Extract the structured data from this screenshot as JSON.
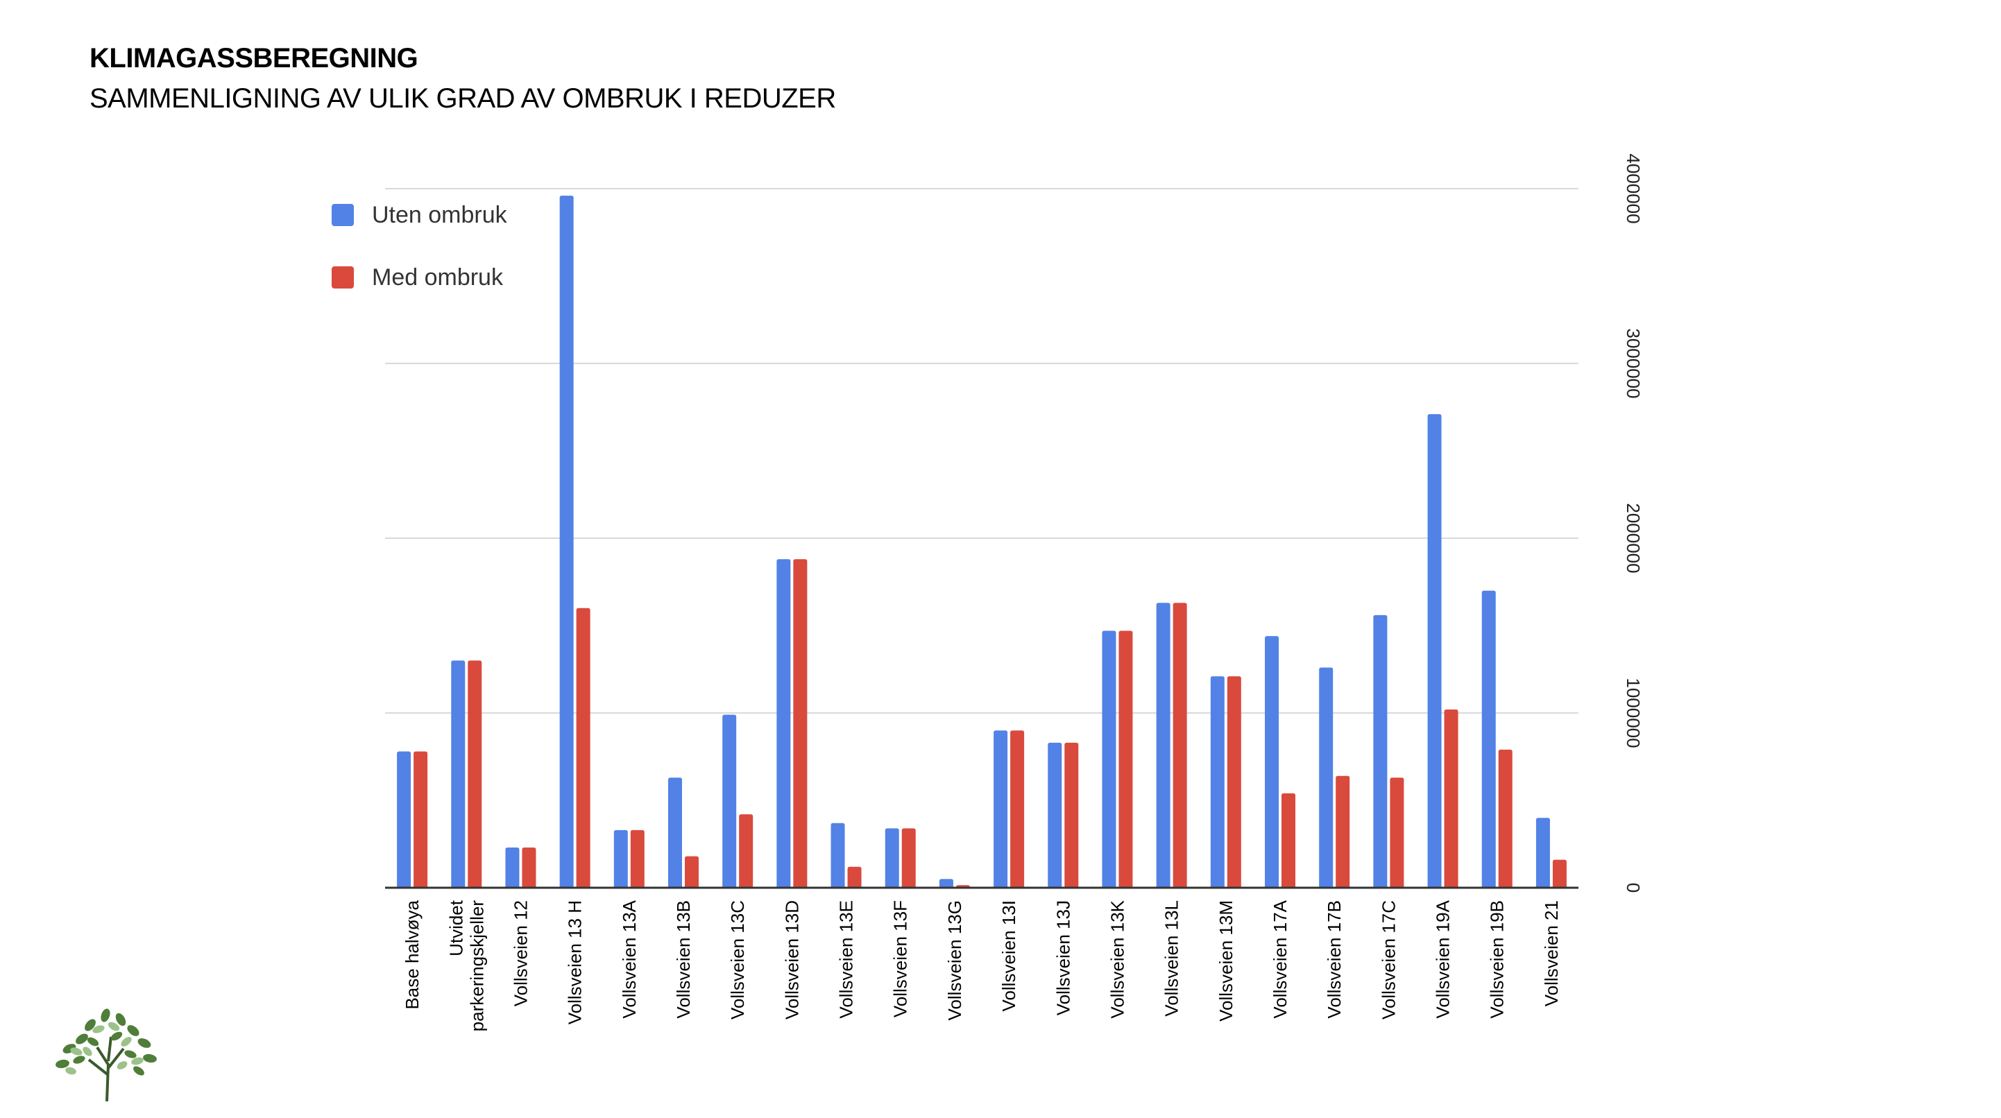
{
  "slide": {
    "title": "KLIMAGASSBEREGNING",
    "subtitle": "SAMMENLIGNING AV ULIK GRAD AV OMBRUK I REDUZER"
  },
  "colors": {
    "uten": "#5282E6",
    "med": "#D94A3D",
    "grid": "#D9D9D9",
    "axis": "#333333",
    "text": "#000000"
  },
  "chart_data": {
    "type": "bar",
    "title": "",
    "xlabel": "",
    "ylabel": "",
    "ylim": [
      0,
      4000000
    ],
    "yticks": [
      "0",
      "1000000",
      "2000000",
      "3000000",
      "4000000"
    ],
    "y_axis_side": "right",
    "grid": true,
    "legend_position": "top-left",
    "categories": [
      "Base halvøya",
      "Utvidet parkeringskjeller",
      "Vollsveien 12",
      "Vollsveien 13 H",
      "Vollsveien 13A",
      "Vollsveien 13B",
      "Vollsveien 13C",
      "Vollsveien 13D",
      "Vollsveien 13E",
      "Vollsveien 13F",
      "Vollsveien 13G",
      "Vollsveien 13I",
      "Vollsveien 13J",
      "Vollsveien 13K",
      "Vollsveien 13L",
      "Vollsveien 13M",
      "Vollsveien 17A",
      "Vollsveien 17B",
      "Vollsveien 17C",
      "Vollsveien 19A",
      "Vollsveien 19B",
      "Vollsveien 21"
    ],
    "series": [
      {
        "name": "Uten ombruk",
        "values": [
          780000,
          1300000,
          230000,
          3960000,
          330000,
          630000,
          990000,
          1880000,
          370000,
          340000,
          50000,
          900000,
          830000,
          1470000,
          1630000,
          1210000,
          1440000,
          1260000,
          1560000,
          2710000,
          1700000,
          400000
        ]
      },
      {
        "name": "Med ombruk",
        "values": [
          780000,
          1300000,
          230000,
          1600000,
          330000,
          180000,
          420000,
          1880000,
          120000,
          340000,
          15000,
          900000,
          830000,
          1470000,
          1630000,
          1210000,
          540000,
          640000,
          630000,
          1020000,
          790000,
          160000
        ]
      }
    ]
  }
}
